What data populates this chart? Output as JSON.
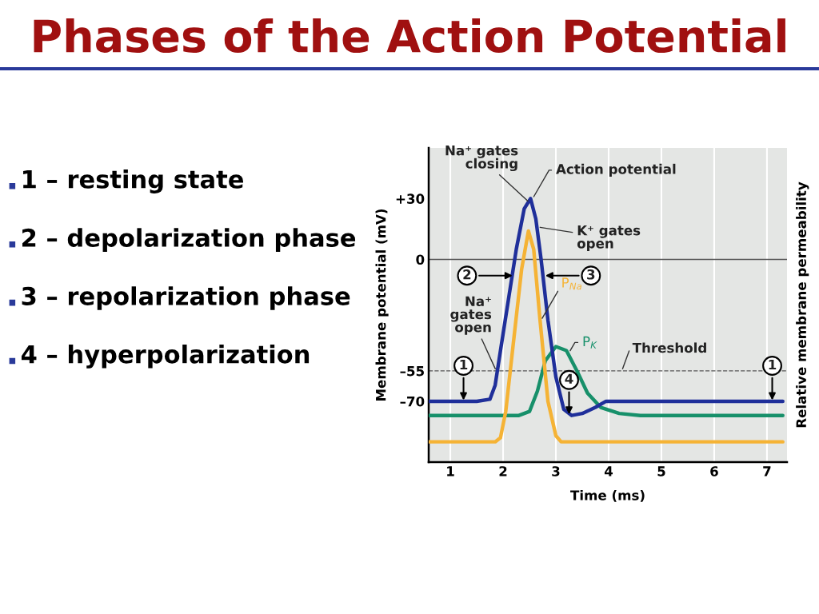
{
  "chart_data": {
    "type": "line",
    "title": "Phases of the Action Potential",
    "xlabel": "Time (ms)",
    "ylabel": "Membrane potential (mV)",
    "y2label": "Relative membrane permeability",
    "xlim": [
      0.59,
      7.38
    ],
    "xticks": [
      1,
      2,
      3,
      4,
      5,
      6,
      7
    ],
    "ylim": [
      -100,
      55
    ],
    "yticks": [
      {
        "value": 30,
        "label": "+30"
      },
      0,
      {
        "value": -55,
        "label": "–55"
      },
      {
        "value": -70,
        "label": "–70"
      }
    ],
    "grid": "x",
    "legend": false,
    "series": [
      {
        "name": "Action potential",
        "color": "#1f2f9a",
        "x": [
          0.6,
          1.5,
          1.75,
          1.85,
          1.95,
          2.1,
          2.25,
          2.4,
          2.52,
          2.62,
          2.72,
          2.85,
          3.0,
          3.15,
          3.3,
          3.5,
          3.75,
          3.95,
          4.2,
          7.3
        ],
        "values": [
          -70,
          -70,
          -69,
          -62,
          -45,
          -20,
          5,
          25,
          30,
          20,
          0,
          -30,
          -58,
          -74,
          -77,
          -76,
          -73,
          -70,
          -70,
          -70
        ]
      },
      {
        "name": "P$_{Na}$",
        "color": "#f5b335",
        "x": [
          0.6,
          1.85,
          1.95,
          2.05,
          2.2,
          2.35,
          2.48,
          2.58,
          2.7,
          2.85,
          3.0,
          3.1,
          7.3
        ],
        "values": [
          -90,
          -90,
          -88,
          -75,
          -40,
          -5,
          14,
          5,
          -30,
          -70,
          -87,
          -90,
          -90
        ]
      },
      {
        "name": "P$_{K}$",
        "color": "#17906a",
        "x": [
          0.6,
          2.3,
          2.5,
          2.65,
          2.8,
          3.0,
          3.2,
          3.4,
          3.6,
          3.85,
          4.2,
          4.6,
          7.3
        ],
        "values": [
          -77,
          -77,
          -75,
          -65,
          -50,
          -43,
          -45,
          -55,
          -66,
          -73,
          -76,
          -77,
          -77
        ]
      }
    ],
    "ref_lines": [
      {
        "axis": "y",
        "value": 0,
        "color": "#555555",
        "line_style": "solid"
      },
      {
        "axis": "y",
        "value": -55,
        "label": "Threshold",
        "color": "#555555",
        "line_style": "dashed"
      }
    ],
    "annotations": [
      "1 – resting state",
      "2 – depolarization phase",
      "3 – repolarization phase",
      "4 – hyperpolarization",
      {
        "text": "Na⁺ gates closing",
        "x": 2.5,
        "y": 28
      },
      {
        "text": "K⁺ gates open",
        "x": 2.66,
        "y": 16
      },
      {
        "text": "Na⁺ gates open",
        "x": 1.87,
        "y": -55
      },
      {
        "text": "1",
        "x": 1.25,
        "y": -70
      },
      {
        "text": "2",
        "x": 2.2,
        "y": -8
      },
      {
        "text": "3",
        "x": 2.78,
        "y": -8
      },
      {
        "text": "4",
        "x": 3.25,
        "y": -77
      },
      {
        "text": "1",
        "x": 7.1,
        "y": -70
      }
    ]
  }
}
